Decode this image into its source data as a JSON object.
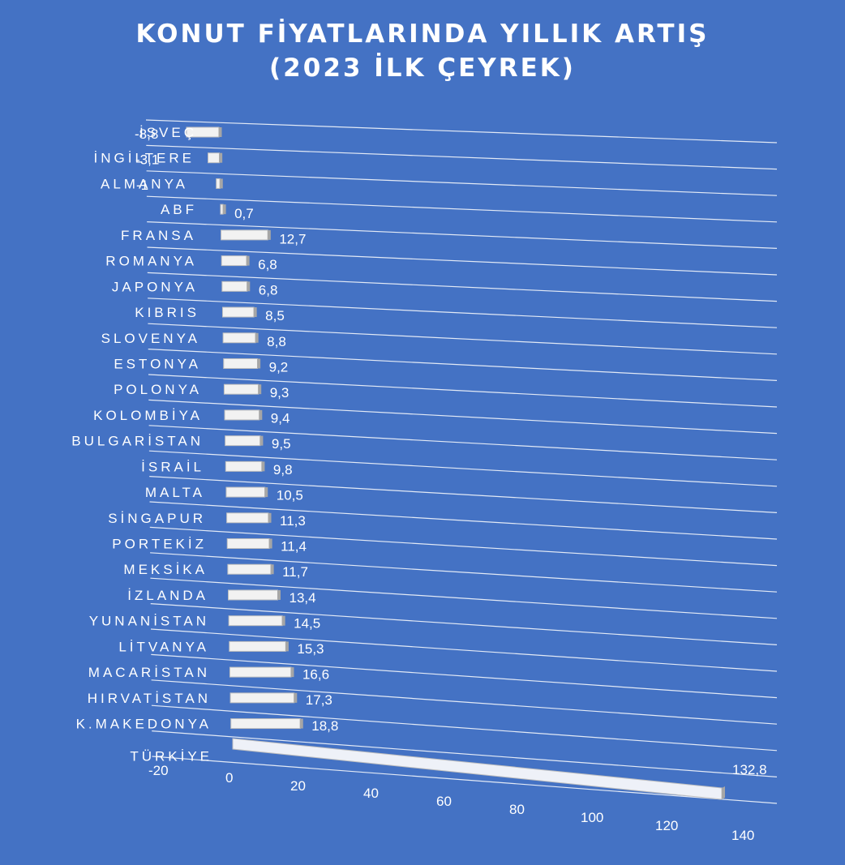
{
  "chart_data": {
    "type": "bar",
    "orientation": "horizontal",
    "title": "KONUT FİYATLARINDA YILLIK ARTIŞ",
    "subtitle": "(2023 İLK ÇEYREK)",
    "categories": [
      "İSVEÇ",
      "İNGİLTERE",
      "ALMANYA",
      "ABF",
      "FRANSA",
      "ROMANYA",
      "JAPONYA",
      "KIBRIS",
      "SLOVENYA",
      "ESTONYA",
      "POLONYA",
      "KOLOMBİYA",
      "BULGARİSTAN",
      "İSRAİL",
      "MALTA",
      "SİNGAPUR",
      "PORTEKİZ",
      "MEKSİKA",
      "İZLANDA",
      "YUNANİSTAN",
      "LİTVANYA",
      "MACARİSTAN",
      "HIRVATİSTAN",
      "K.MAKEDONYA",
      "TÜRKİYE"
    ],
    "values": [
      -8.8,
      -3.1,
      -1,
      0.7,
      12.7,
      6.8,
      6.8,
      8.5,
      8.8,
      9.2,
      9.3,
      9.4,
      9.5,
      9.8,
      10.5,
      11.3,
      11.4,
      11.7,
      13.4,
      14.5,
      15.3,
      16.6,
      17.3,
      18.8,
      132.8
    ],
    "value_labels": [
      "-8,8",
      "-3,1",
      "-1",
      "0,7",
      "12,7",
      "6,8",
      "6,8",
      "8,5",
      "8,8",
      "9,2",
      "9,3",
      "9,4",
      "9,5",
      "9,8",
      "10,5",
      "11,3",
      "11,4",
      "11,7",
      "13,4",
      "14,5",
      "15,3",
      "16,6",
      "17,3",
      "18,8",
      "132,8"
    ],
    "x_ticks": [
      -20,
      0,
      20,
      40,
      60,
      80,
      100,
      120,
      140
    ],
    "xlim": [
      -20,
      140
    ],
    "xlabel": "",
    "ylabel": "",
    "grid": true,
    "style": "3d-perspective",
    "colors": {
      "background": "#4472c4",
      "bar_face": "#ffffff",
      "bar_side": "#a6a6a6",
      "text": "#ffffff"
    }
  }
}
